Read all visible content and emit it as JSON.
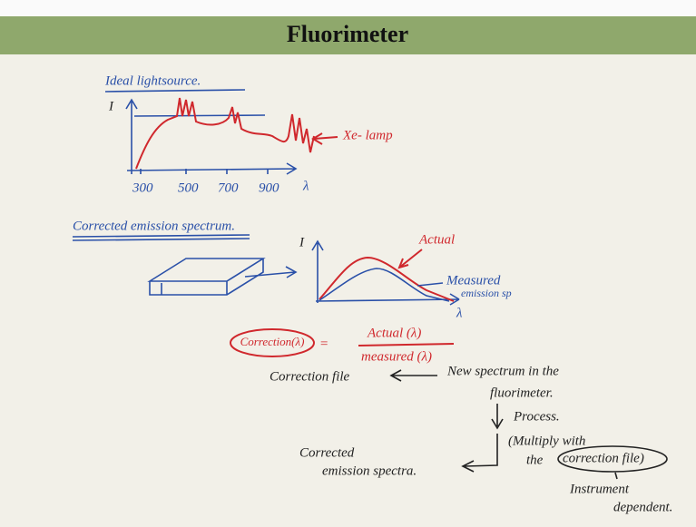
{
  "header": {
    "title": "Fluorimeter"
  },
  "ideal_source": {
    "heading": "Ideal lightsource.",
    "y_axis": "I",
    "x_ticks": [
      "300",
      "500",
      "700",
      "900"
    ],
    "x_axis": "λ",
    "lamp_label": "Xe- lamp"
  },
  "corrected_spectrum": {
    "heading": "Corrected emission spectrum.",
    "y_axis": "I",
    "x_axis": "λ",
    "actual_label": "Actual",
    "measured_label": [
      "Measured",
      "emission sp"
    ]
  },
  "formula": {
    "term": "Correction(λ)",
    "equals": "=",
    "numerator": "Actual (λ)",
    "denominator": "measured (λ)"
  },
  "flow": {
    "correction_file": "Correction file",
    "new_spectrum": [
      "New spectrum in the",
      "fluorimeter."
    ],
    "process": "Process.",
    "multiply": [
      "(Multiply with",
      "the",
      "correction file)"
    ],
    "instrument": [
      "Instrument",
      "dependent."
    ],
    "result": [
      "Corrected",
      "emission spectra."
    ]
  }
}
